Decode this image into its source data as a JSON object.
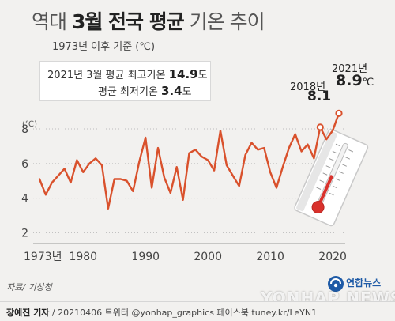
{
  "title": {
    "prefix": "역대 ",
    "highlight": "3월 전국 평균",
    "suffix": " 기온 추이"
  },
  "subtitle": "1973년 이후 기준 (℃)",
  "info": {
    "max_label": "2021년 3월 평균 최고기온",
    "max_value": "14.9",
    "max_unit": "도",
    "min_label": "평균 최저기온",
    "min_value": "3.4",
    "min_unit": "도"
  },
  "annotations": {
    "y2018_label": "2018년",
    "y2018_value": "8.1",
    "y2021_label": "2021년",
    "y2021_value": "8.9",
    "y2021_unit": "℃"
  },
  "y_unit_label": "(℃)",
  "source": "자료/ 기상청",
  "footer": {
    "reporter": "장예진 기자",
    "rest": " / 20210406 트위터 @yonhap_graphics  페이스북 tuney.kr/LeYN1"
  },
  "logo_text": "연합뉴스",
  "watermark": "YONHAP NEWS",
  "colors": {
    "line": "#d9512c",
    "grid": "#bcbcbc",
    "background": "#f2f1ef",
    "accent_blue": "#1e5aa6"
  },
  "chart_data": {
    "type": "line",
    "title": "역대 3월 전국 평균 기온 추이",
    "xlabel": "",
    "ylabel": "(℃)",
    "x": [
      1973,
      1974,
      1975,
      1976,
      1977,
      1978,
      1979,
      1980,
      1981,
      1982,
      1983,
      1984,
      1985,
      1986,
      1987,
      1988,
      1989,
      1990,
      1991,
      1992,
      1993,
      1994,
      1995,
      1996,
      1997,
      1998,
      1999,
      2000,
      2001,
      2002,
      2003,
      2004,
      2005,
      2006,
      2007,
      2008,
      2009,
      2010,
      2011,
      2012,
      2013,
      2014,
      2015,
      2016,
      2017,
      2018,
      2019,
      2020,
      2021
    ],
    "series": [
      {
        "values": [
          5.1,
          4.2,
          4.9,
          5.3,
          5.7,
          4.9,
          6.2,
          5.5,
          6.0,
          6.3,
          5.9,
          3.4,
          5.1,
          5.1,
          5.0,
          4.4,
          6.1,
          7.5,
          4.6,
          6.9,
          5.2,
          4.3,
          5.8,
          3.9,
          6.6,
          6.8,
          6.4,
          6.2,
          5.6,
          7.9,
          5.9,
          5.3,
          4.7,
          6.5,
          7.2,
          6.8,
          6.9,
          5.5,
          4.6,
          5.8,
          6.9,
          7.7,
          6.7,
          7.1,
          6.3,
          8.1,
          7.4,
          7.9,
          8.9
        ]
      }
    ],
    "x_ticks": [
      {
        "value": 1973,
        "label": "1973년"
      },
      {
        "value": 1980,
        "label": "1980"
      },
      {
        "value": 1990,
        "label": "1990"
      },
      {
        "value": 2000,
        "label": "2000"
      },
      {
        "value": 2010,
        "label": "2010"
      },
      {
        "value": 2020,
        "label": "2020"
      }
    ],
    "y_ticks": [
      2,
      4,
      6,
      8
    ],
    "xlim": [
      1973,
      2021
    ],
    "ylim": [
      1.7,
      9.6
    ],
    "grid": true,
    "highlight_points": [
      2018,
      2021
    ]
  }
}
